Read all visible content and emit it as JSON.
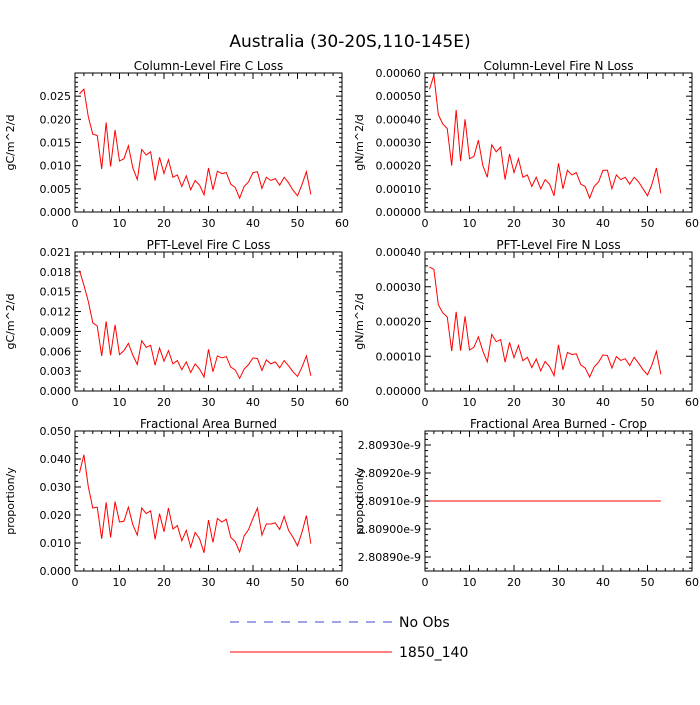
{
  "title": "Australia (30-20S,110-145E)",
  "colors": {
    "model": "#ff0000",
    "obs": "#0000ff",
    "axis": "#000000"
  },
  "legend": [
    {
      "label": "No Obs",
      "style": "dashed",
      "color": "#4444cc"
    },
    {
      "label": "1850_140",
      "style": "solid",
      "color": "#ff0000"
    }
  ],
  "chart_data": [
    {
      "type": "line",
      "title": "Column-Level Fire C Loss",
      "ylabel": "gC/m^2/d",
      "xlim": [
        0,
        60
      ],
      "ylim": [
        0,
        0.03
      ],
      "xticks": [
        "0",
        "10",
        "20",
        "30",
        "40",
        "50",
        "60"
      ],
      "yticks": [
        "0.000",
        "0.005",
        "0.010",
        "0.015",
        "0.020",
        "0.025"
      ],
      "ytick_values": [
        0,
        0.005,
        0.01,
        0.015,
        0.02,
        0.025
      ],
      "series": [
        {
          "x": [
            1,
            2,
            3,
            4,
            5,
            6,
            7,
            8,
            9,
            10,
            11,
            12,
            13,
            14,
            15,
            16,
            17,
            18,
            19,
            20,
            21,
            22,
            23,
            24,
            25,
            26,
            27,
            28,
            29,
            30,
            31,
            32,
            33,
            34,
            35,
            36,
            37,
            38,
            39,
            40,
            41,
            42,
            43,
            44,
            45,
            46,
            47,
            48,
            49,
            50,
            51,
            52,
            53
          ],
          "values": [
            0.0255,
            0.0265,
            0.0205,
            0.0168,
            0.0165,
            0.0093,
            0.0193,
            0.0098,
            0.0177,
            0.011,
            0.0115,
            0.0143,
            0.0095,
            0.007,
            0.0135,
            0.0123,
            0.013,
            0.0068,
            0.0118,
            0.0083,
            0.0113,
            0.0075,
            0.008,
            0.0055,
            0.0078,
            0.0048,
            0.0068,
            0.0058,
            0.0037,
            0.0095,
            0.0048,
            0.0088,
            0.0083,
            0.0085,
            0.006,
            0.0053,
            0.003,
            0.0055,
            0.0065,
            0.0085,
            0.0087,
            0.0051,
            0.0075,
            0.0068,
            0.0072,
            0.0058,
            0.0075,
            0.0063,
            0.0047,
            0.0035,
            0.0059,
            0.0087,
            0.0038
          ]
        }
      ]
    },
    {
      "type": "line",
      "title": "Column-Level Fire N Loss",
      "ylabel": "gN/m^2/d",
      "xlim": [
        0,
        60
      ],
      "ylim": [
        0,
        0.0006
      ],
      "xticks": [
        "0",
        "10",
        "20",
        "30",
        "40",
        "50",
        "60"
      ],
      "yticks": [
        "0.00000",
        "0.00010",
        "0.00020",
        "0.00030",
        "0.00040",
        "0.00050",
        "0.00060"
      ],
      "ytick_values": [
        0,
        0.0001,
        0.0002,
        0.0003,
        0.0004,
        0.0005,
        0.0006
      ],
      "series": [
        {
          "x": [
            1,
            2,
            3,
            4,
            5,
            6,
            7,
            8,
            9,
            10,
            11,
            12,
            13,
            14,
            15,
            16,
            17,
            18,
            19,
            20,
            21,
            22,
            23,
            24,
            25,
            26,
            27,
            28,
            29,
            30,
            31,
            32,
            33,
            34,
            35,
            36,
            37,
            38,
            39,
            40,
            41,
            42,
            43,
            44,
            45,
            46,
            47,
            48,
            49,
            50,
            51,
            52,
            53
          ],
          "values": [
            0.00053,
            0.00059,
            0.00042,
            0.00038,
            0.00036,
            0.0002,
            0.00044,
            0.00022,
            0.0004,
            0.00023,
            0.00024,
            0.00031,
            0.0002,
            0.00015,
            0.00029,
            0.00026,
            0.00028,
            0.00014,
            0.00025,
            0.00017,
            0.00023,
            0.00015,
            0.00016,
            0.00011,
            0.00015,
            0.0001,
            0.00014,
            0.00012,
            7e-05,
            0.00021,
            0.0001,
            0.00018,
            0.00016,
            0.00017,
            0.00012,
            0.00011,
            6e-05,
            0.00011,
            0.00013,
            0.00018,
            0.00018,
            0.0001,
            0.00016,
            0.00014,
            0.00015,
            0.00012,
            0.00015,
            0.00013,
            0.0001,
            7e-05,
            0.00012,
            0.00019,
            8e-05
          ]
        }
      ]
    },
    {
      "type": "line",
      "title": "PFT-Level Fire C Loss",
      "ylabel": "gC/m^2/d",
      "xlim": [
        0,
        60
      ],
      "ylim": [
        0,
        0.021
      ],
      "xticks": [
        "0",
        "10",
        "20",
        "30",
        "40",
        "50",
        "60"
      ],
      "yticks": [
        "0.000",
        "0.003",
        "0.006",
        "0.009",
        "0.012",
        "0.015",
        "0.018",
        "0.021"
      ],
      "ytick_values": [
        0,
        0.003,
        0.006,
        0.009,
        0.012,
        0.015,
        0.018,
        0.021
      ],
      "series": [
        {
          "x": [
            1,
            2,
            3,
            4,
            5,
            6,
            7,
            8,
            9,
            10,
            11,
            12,
            13,
            14,
            15,
            16,
            17,
            18,
            19,
            20,
            21,
            22,
            23,
            24,
            25,
            26,
            27,
            28,
            29,
            30,
            31,
            32,
            33,
            34,
            35,
            36,
            37,
            38,
            39,
            40,
            41,
            42,
            43,
            44,
            45,
            46,
            47,
            48,
            49,
            50,
            51,
            52,
            53
          ],
          "values": [
            0.0182,
            0.016,
            0.0135,
            0.0103,
            0.0098,
            0.0053,
            0.0105,
            0.0054,
            0.01,
            0.0055,
            0.0061,
            0.0072,
            0.0054,
            0.004,
            0.0076,
            0.0066,
            0.0069,
            0.0039,
            0.0065,
            0.0045,
            0.0061,
            0.0041,
            0.0046,
            0.0032,
            0.0044,
            0.0028,
            0.0041,
            0.0033,
            0.0021,
            0.0063,
            0.0029,
            0.0053,
            0.005,
            0.0052,
            0.0036,
            0.0032,
            0.0019,
            0.0033,
            0.004,
            0.005,
            0.0049,
            0.0031,
            0.0047,
            0.0041,
            0.0044,
            0.0035,
            0.0046,
            0.0038,
            0.0029,
            0.0022,
            0.0036,
            0.0053,
            0.0023
          ]
        }
      ]
    },
    {
      "type": "line",
      "title": "PFT-Level Fire N Loss",
      "ylabel": "gN/m^2/d",
      "xlim": [
        0,
        60
      ],
      "ylim": [
        0,
        0.0004
      ],
      "xticks": [
        "0",
        "10",
        "20",
        "30",
        "40",
        "50",
        "60"
      ],
      "yticks": [
        "0.00000",
        "0.00010",
        "0.00020",
        "0.00030",
        "0.00040"
      ],
      "ytick_values": [
        0,
        0.0001,
        0.0002,
        0.0003,
        0.0004
      ],
      "series": [
        {
          "x": [
            1,
            2,
            3,
            4,
            5,
            6,
            7,
            8,
            9,
            10,
            11,
            12,
            13,
            14,
            15,
            16,
            17,
            18,
            19,
            20,
            21,
            22,
            23,
            24,
            25,
            26,
            27,
            28,
            29,
            30,
            31,
            32,
            33,
            34,
            35,
            36,
            37,
            38,
            39,
            40,
            41,
            42,
            43,
            44,
            45,
            46,
            47,
            48,
            49,
            50,
            51,
            52,
            53
          ],
          "values": [
            0.000357,
            0.00035,
            0.000248,
            0.000225,
            0.000213,
            0.000115,
            0.000228,
            0.000116,
            0.000215,
            0.000118,
            0.000126,
            0.000156,
            0.000115,
            8.4e-05,
            0.000163,
            0.000142,
            0.000148,
            8.3e-05,
            0.00014,
            9.6e-05,
            0.000131,
            8.7e-05,
            9.7e-05,
            6.7e-05,
            9.2e-05,
            5.8e-05,
            8.5e-05,
            7e-05,
            4.4e-05,
            0.000133,
            6.1e-05,
            0.000111,
            0.000105,
            0.000107,
            7.5e-05,
            6.6e-05,
            4e-05,
            6.9e-05,
            8.3e-05,
            0.000104,
            0.000102,
            6.6e-05,
            9.9e-05,
            8.8e-05,
            9.3e-05,
            7.3e-05,
            9.7e-05,
            8e-05,
            6.1e-05,
            4.7e-05,
            7.5e-05,
            0.000114,
            4.8e-05
          ]
        }
      ]
    },
    {
      "type": "line",
      "title": "Fractional Area Burned",
      "ylabel": "proportion/y",
      "xlim": [
        0,
        60
      ],
      "ylim": [
        0,
        0.05
      ],
      "xticks": [
        "0",
        "10",
        "20",
        "30",
        "40",
        "50",
        "60"
      ],
      "yticks": [
        "0.000",
        "0.010",
        "0.020",
        "0.030",
        "0.040",
        "0.050"
      ],
      "ytick_values": [
        0,
        0.01,
        0.02,
        0.03,
        0.04,
        0.05
      ],
      "series": [
        {
          "x": [
            1,
            2,
            3,
            4,
            5,
            6,
            7,
            8,
            9,
            10,
            11,
            12,
            13,
            14,
            15,
            16,
            17,
            18,
            19,
            20,
            21,
            22,
            23,
            24,
            25,
            26,
            27,
            28,
            29,
            30,
            31,
            32,
            33,
            34,
            35,
            36,
            37,
            38,
            39,
            40,
            41,
            42,
            43,
            44,
            45,
            46,
            47,
            48,
            49,
            50,
            51,
            52,
            53
          ],
          "values": [
            0.035,
            0.0415,
            0.03,
            0.0225,
            0.0228,
            0.0115,
            0.0245,
            0.012,
            0.0248,
            0.0175,
            0.0178,
            0.0228,
            0.0165,
            0.0128,
            0.0225,
            0.0205,
            0.0215,
            0.0113,
            0.0205,
            0.014,
            0.0225,
            0.015,
            0.0162,
            0.0108,
            0.0145,
            0.0085,
            0.0138,
            0.0115,
            0.0065,
            0.0182,
            0.0102,
            0.0188,
            0.0175,
            0.0185,
            0.012,
            0.0105,
            0.0068,
            0.0125,
            0.0148,
            0.0188,
            0.0225,
            0.0128,
            0.0168,
            0.0168,
            0.0172,
            0.0148,
            0.0195,
            0.0145,
            0.012,
            0.009,
            0.0138,
            0.0198,
            0.0098
          ]
        }
      ]
    },
    {
      "type": "line",
      "title": "Fractional Area Burned - Crop",
      "ylabel": "proportion/y",
      "xlim": [
        0,
        60
      ],
      "ylim": [
        2.80885e-09,
        2.80935e-09
      ],
      "xticks": [
        "0",
        "10",
        "20",
        "30",
        "40",
        "50",
        "60"
      ],
      "yticks": [
        "2.80890e-9",
        "2.80900e-9",
        "2.80910e-9",
        "2.80920e-9",
        "2.80930e-9"
      ],
      "ytick_values": [
        2.8089e-09,
        2.809e-09,
        2.8091e-09,
        2.8092e-09,
        2.8093e-09
      ],
      "series": [
        {
          "x": [
            1,
            53
          ],
          "values": [
            2.8091e-09,
            2.8091e-09
          ]
        }
      ]
    }
  ]
}
